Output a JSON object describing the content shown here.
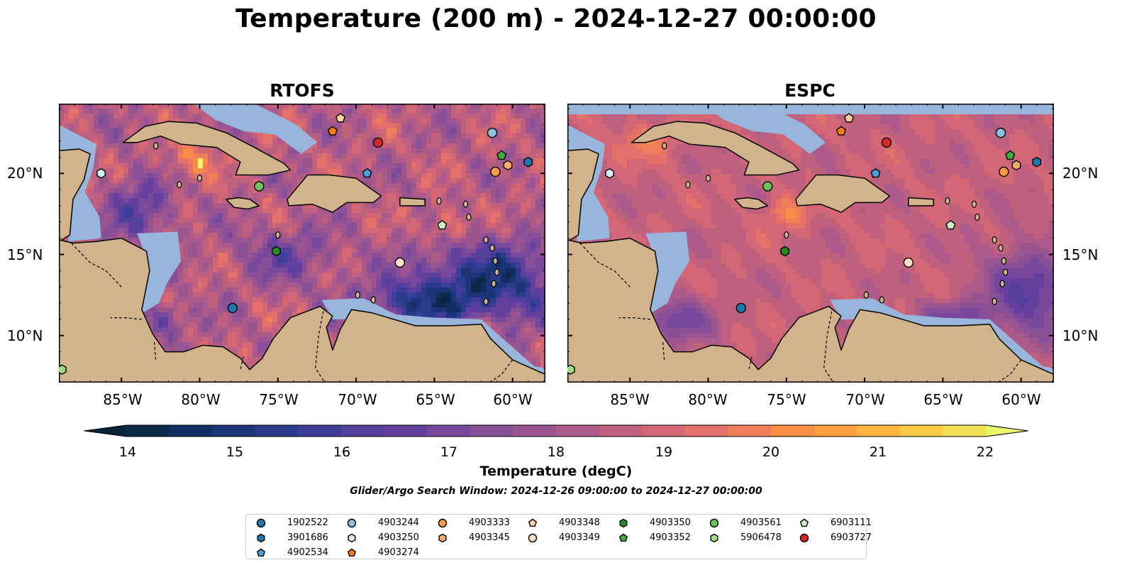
{
  "title": "Temperature (200 m) - 2024-12-27 00:00:00",
  "panels": [
    {
      "title": "RTOFS"
    },
    {
      "title": "ESPC"
    }
  ],
  "lat_labels": [
    "20°N",
    "15°N",
    "10°N"
  ],
  "lon_labels": [
    "85°W",
    "80°W",
    "75°W",
    "70°W",
    "65°W",
    "60°W"
  ],
  "colorbar": {
    "label": "Temperature (degC)",
    "min": 14,
    "max": 22,
    "step": 0.5,
    "ticks": [
      "14",
      "15",
      "16",
      "17",
      "18",
      "19",
      "20",
      "21",
      "22"
    ],
    "colors": [
      "#0b2a4a",
      "#102e64",
      "#1b3578",
      "#2b3b8c",
      "#3e3d99",
      "#533f9c",
      "#653f9e",
      "#77489c",
      "#894f97",
      "#9a5490",
      "#ac5a89",
      "#c0607f",
      "#d36776",
      "#e4716a",
      "#f07e58",
      "#f88d45",
      "#fb9f3c",
      "#fcb53d",
      "#f9cb45",
      "#f1e056"
    ],
    "under_color": "#06243a",
    "over_color": "#e9f76a"
  },
  "search_window": "Glider/Argo Search Window: 2024-12-26 09:00:00 to 2024-12-27 00:00:00",
  "floats": [
    {
      "id": "1902522",
      "color": "#1f77b4",
      "marker": "circle"
    },
    {
      "id": "3901686",
      "color": "#1f77b4",
      "marker": "hexagon"
    },
    {
      "id": "4902534",
      "color": "#4a9fd8",
      "marker": "pentagon"
    },
    {
      "id": "4903244",
      "color": "#8fc1e4",
      "marker": "circle"
    },
    {
      "id": "4903250",
      "color": "#d7ecf8",
      "marker": "hexagon"
    },
    {
      "id": "4903274",
      "color": "#ff7f0e",
      "marker": "pentagon"
    },
    {
      "id": "4903333",
      "color": "#fd9a44",
      "marker": "circle"
    },
    {
      "id": "4903345",
      "color": "#fdae6b",
      "marker": "hexagon"
    },
    {
      "id": "4903348",
      "color": "#fdd0a2",
      "marker": "pentagon"
    },
    {
      "id": "4903349",
      "color": "#fde0c5",
      "marker": "circle"
    },
    {
      "id": "4903350",
      "color": "#238b22",
      "marker": "hexagon"
    },
    {
      "id": "4903352",
      "color": "#41ab3c",
      "marker": "pentagon"
    },
    {
      "id": "4903561",
      "color": "#6cc35a",
      "marker": "circle"
    },
    {
      "id": "5906478",
      "color": "#a1dd88",
      "marker": "hexagon"
    },
    {
      "id": "6903111",
      "color": "#d1f2c4",
      "marker": "pentagon"
    },
    {
      "id": "6903727",
      "color": "#d62728",
      "marker": "circle"
    }
  ],
  "float_positions": [
    {
      "id": "1902522",
      "lon": -77.9,
      "lat": 11.7
    },
    {
      "id": "3901686",
      "lon": -59.0,
      "lat": 20.7
    },
    {
      "id": "4902534",
      "lon": -69.3,
      "lat": 20.0
    },
    {
      "id": "4903244",
      "lon": -61.3,
      "lat": 22.5
    },
    {
      "id": "4903250",
      "lon": -86.3,
      "lat": 20.0
    },
    {
      "id": "4903274",
      "lon": -71.5,
      "lat": 22.6
    },
    {
      "id": "4903333",
      "lon": -61.1,
      "lat": 20.1
    },
    {
      "id": "4903345",
      "lon": -60.3,
      "lat": 20.5
    },
    {
      "id": "4903348",
      "lon": -71.0,
      "lat": 23.4
    },
    {
      "id": "4903349",
      "lon": -67.2,
      "lat": 14.5
    },
    {
      "id": "4903350",
      "lon": -75.1,
      "lat": 15.2
    },
    {
      "id": "4903352",
      "lon": -60.7,
      "lat": 21.1
    },
    {
      "id": "4903561",
      "lon": -76.2,
      "lat": 19.2
    },
    {
      "id": "5906478",
      "lon": -88.8,
      "lat": 7.9
    },
    {
      "id": "6903111",
      "lon": -64.5,
      "lat": 16.8
    },
    {
      "id": "6903727",
      "lon": -68.6,
      "lat": 21.9
    }
  ]
}
